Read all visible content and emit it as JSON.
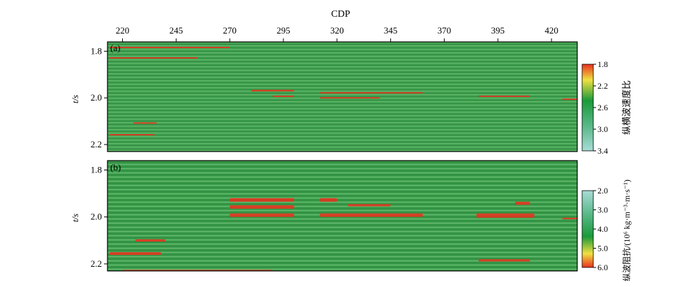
{
  "chart_data": [
    {
      "type": "heatmap",
      "panel_label": "(a)",
      "xlabel": "CDP",
      "ylabel": "t/s",
      "x_ticks": [
        220,
        245,
        270,
        295,
        320,
        345,
        370,
        395,
        420
      ],
      "y_ticks": [
        "1.8",
        "2.0",
        "2.2"
      ],
      "xlim": [
        213,
        432
      ],
      "ylim": [
        1.76,
        2.23
      ],
      "colorbar": {
        "label": "纵横波速度比",
        "ticks": [
          "1.8",
          "2.2",
          "2.6",
          "3.0",
          "3.4"
        ],
        "range": [
          1.8,
          3.4
        ],
        "colors": [
          "#e83020",
          "#f0e040",
          "#1a9a3a",
          "#5ab98a",
          "#a8dcd6"
        ]
      },
      "background_color": "#3fa04f",
      "anomaly_color": "#e8321e",
      "anomalies": [
        {
          "cdp": [
            214,
            270
          ],
          "t": [
            1.781,
            1.787
          ]
        },
        {
          "cdp": [
            214,
            255
          ],
          "t": [
            1.826,
            1.83
          ]
        },
        {
          "cdp": [
            280,
            300
          ],
          "t": [
            1.965,
            1.972
          ]
        },
        {
          "cdp": [
            290,
            300
          ],
          "t": [
            1.99,
            1.996
          ]
        },
        {
          "cdp": [
            312,
            360
          ],
          "t": [
            1.975,
            1.981
          ]
        },
        {
          "cdp": [
            312,
            340
          ],
          "t": [
            1.997,
            2.003
          ]
        },
        {
          "cdp": [
            386,
            410
          ],
          "t": [
            1.99,
            1.996
          ]
        },
        {
          "cdp": [
            425,
            432
          ],
          "t": [
            2.003,
            2.009
          ]
        },
        {
          "cdp": [
            214,
            235
          ],
          "t": [
            2.155,
            2.161
          ]
        },
        {
          "cdp": [
            225,
            236
          ],
          "t": [
            2.105,
            2.111
          ]
        }
      ]
    },
    {
      "type": "heatmap",
      "panel_label": "(b)",
      "xlabel": "",
      "ylabel": "t/s",
      "x_ticks": [],
      "y_ticks": [
        "1.8",
        "2.0",
        "2.2"
      ],
      "xlim": [
        213,
        432
      ],
      "ylim": [
        1.76,
        2.23
      ],
      "colorbar": {
        "label": "纵波阻抗/(10⁶ kg·m⁻³·m·s⁻¹)",
        "ticks": [
          "2.0",
          "3.0",
          "4.0",
          "5.0",
          "6.0"
        ],
        "range": [
          2.0,
          6.0
        ],
        "colors": [
          "#a8dcd6",
          "#5ab98a",
          "#1a9a3a",
          "#f0e040",
          "#e83020"
        ]
      },
      "background_color": "#3fa04f",
      "anomaly_color": "#e8321e",
      "anomalies": [
        {
          "cdp": [
            270,
            300
          ],
          "t": [
            1.92,
            1.935
          ]
        },
        {
          "cdp": [
            270,
            300
          ],
          "t": [
            1.95,
            1.965
          ]
        },
        {
          "cdp": [
            270,
            300
          ],
          "t": [
            1.985,
            2.0
          ]
        },
        {
          "cdp": [
            312,
            360
          ],
          "t": [
            1.985,
            2.0
          ]
        },
        {
          "cdp": [
            312,
            320
          ],
          "t": [
            1.92,
            1.935
          ]
        },
        {
          "cdp": [
            325,
            345
          ],
          "t": [
            1.945,
            1.955
          ]
        },
        {
          "cdp": [
            385,
            412
          ],
          "t": [
            1.985,
            2.003
          ]
        },
        {
          "cdp": [
            403,
            410
          ],
          "t": [
            1.935,
            1.948
          ]
        },
        {
          "cdp": [
            425,
            432
          ],
          "t": [
            2.003,
            2.01
          ]
        },
        {
          "cdp": [
            214,
            238
          ],
          "t": [
            2.15,
            2.162
          ]
        },
        {
          "cdp": [
            226,
            240
          ],
          "t": [
            2.095,
            2.105
          ]
        },
        {
          "cdp": [
            386,
            410
          ],
          "t": [
            2.18,
            2.19
          ]
        },
        {
          "cdp": [
            220,
            290
          ],
          "t": [
            2.225,
            2.23
          ]
        }
      ]
    }
  ]
}
